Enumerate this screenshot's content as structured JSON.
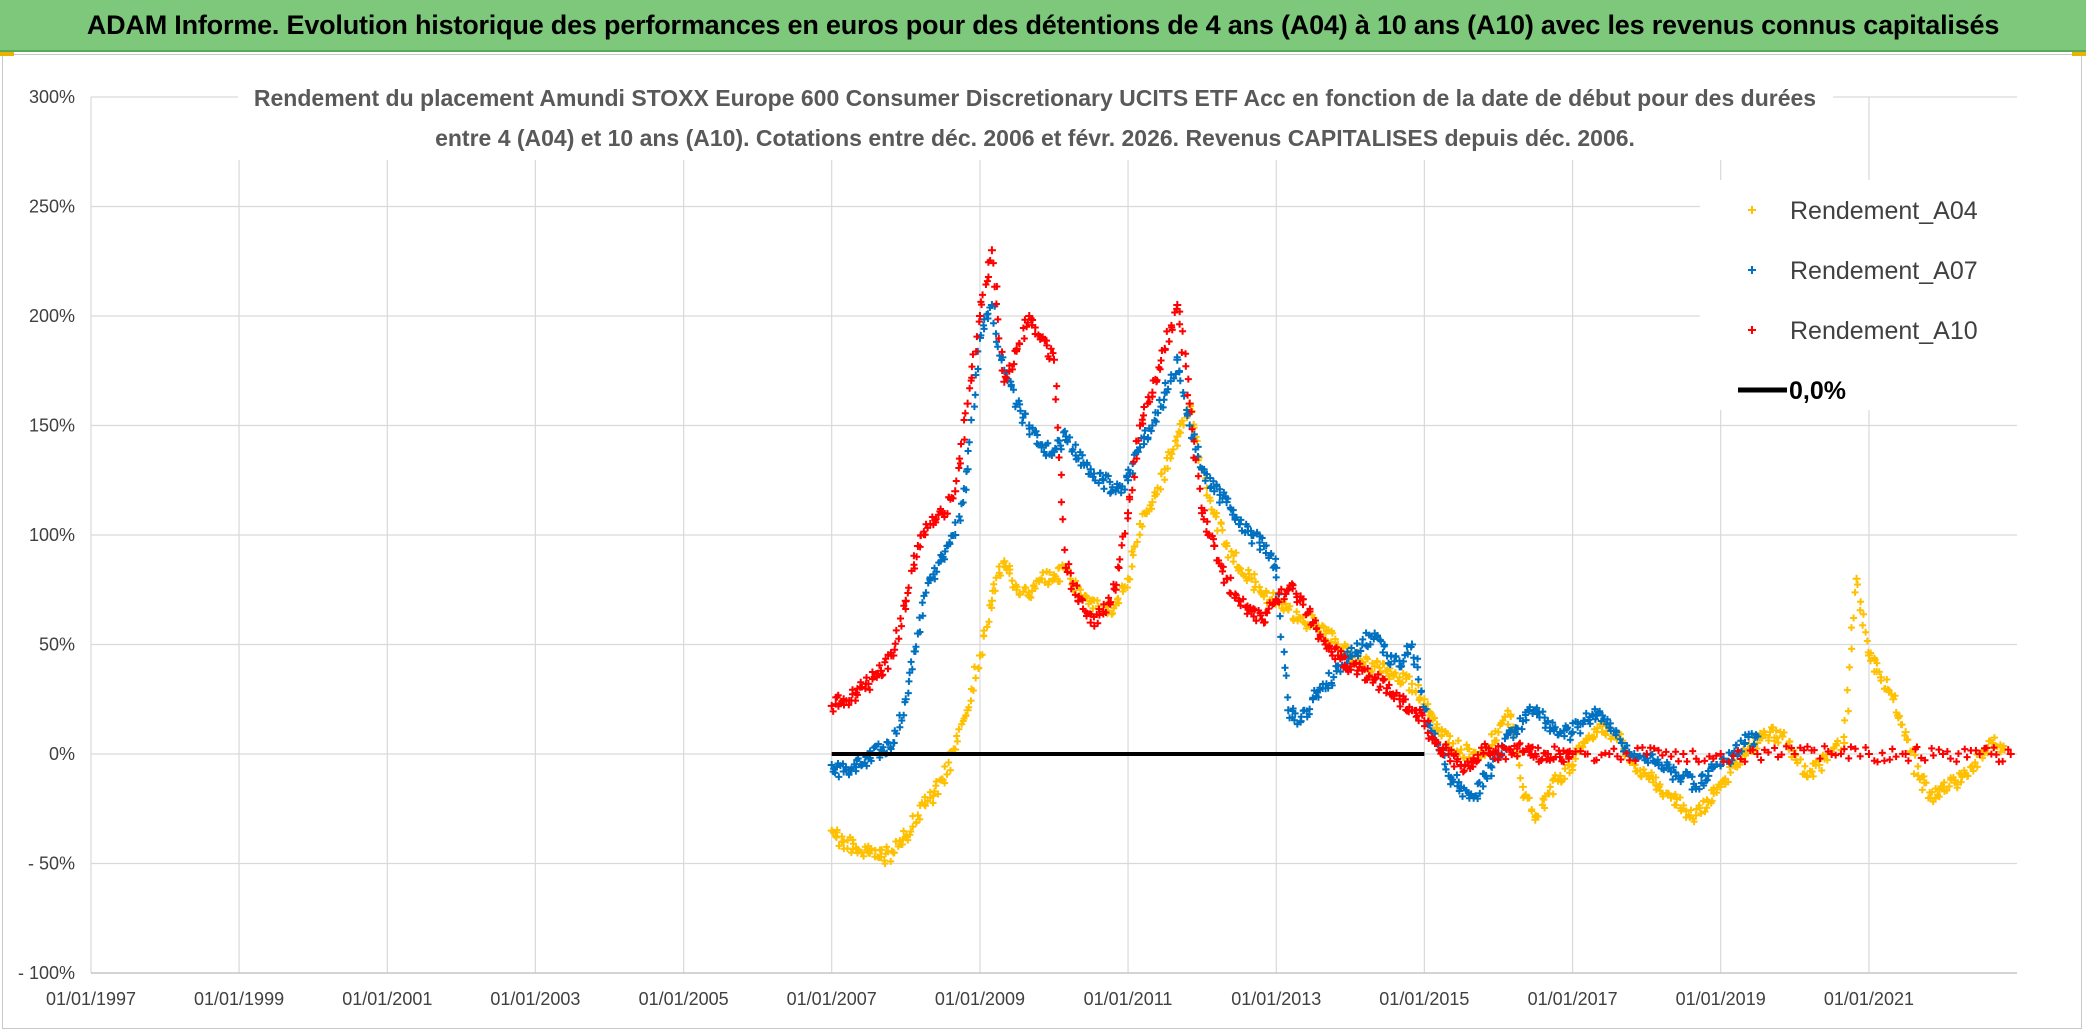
{
  "banner": {
    "text": "ADAM Informe. Evolution historique des performances en euros pour des détentions de 4 ans (A04) à 10 ans (A10) avec les revenus connus capitalisés",
    "background": "#7dc87a"
  },
  "chart_data": {
    "type": "scatter",
    "title_line1": "Rendement du placement Amundi STOXX Europe 600 Consumer Discretionary UCITS ETF Acc en fonction de la date de début pour des durées",
    "title_line2": "entre 4 (A04) et 10 ans (A10). Cotations entre déc. 2006 et févr. 2026. Revenus CAPITALISES depuis déc. 2006.",
    "xlabel": "",
    "ylabel": "",
    "xlim": [
      "1997-01-01",
      "2023-01-01"
    ],
    "ylim": [
      -100,
      300
    ],
    "grid": true,
    "legend_position": "top-right",
    "x_tick_labels": [
      "01/01/1997",
      "01/01/1999",
      "01/01/2001",
      "01/01/2003",
      "01/01/2005",
      "01/01/2007",
      "01/01/2009",
      "01/01/2011",
      "01/01/2013",
      "01/01/2015",
      "01/01/2017",
      "01/01/2019",
      "01/01/2021"
    ],
    "y_tick_labels": [
      "300%",
      "250%",
      "200%",
      "150%",
      "100%",
      "50%",
      "0%",
      "- 50%",
      "- 100%"
    ],
    "y_tick_values": [
      300,
      250,
      200,
      150,
      100,
      50,
      0,
      -50,
      -100
    ],
    "series": [
      {
        "name": "Rendement_A04",
        "color": "#ffc000",
        "marker": "+",
        "points": [
          [
            "2007-01-01",
            -35
          ],
          [
            "2007-03-01",
            -40
          ],
          [
            "2007-05-01",
            -43
          ],
          [
            "2007-07-01",
            -45
          ],
          [
            "2007-09-01",
            -47
          ],
          [
            "2007-11-01",
            -45
          ],
          [
            "2008-01-01",
            -38
          ],
          [
            "2008-03-01",
            -28
          ],
          [
            "2008-05-01",
            -20
          ],
          [
            "2008-07-01",
            -12
          ],
          [
            "2008-09-01",
            2
          ],
          [
            "2008-11-01",
            20
          ],
          [
            "2009-01-01",
            45
          ],
          [
            "2009-03-01",
            70
          ],
          [
            "2009-05-01",
            88
          ],
          [
            "2009-07-01",
            75
          ],
          [
            "2009-09-01",
            72
          ],
          [
            "2009-11-01",
            80
          ],
          [
            "2010-01-01",
            80
          ],
          [
            "2010-03-01",
            85
          ],
          [
            "2010-05-01",
            72
          ],
          [
            "2010-07-01",
            70
          ],
          [
            "2010-09-01",
            65
          ],
          [
            "2010-11-01",
            68
          ],
          [
            "2011-01-01",
            80
          ],
          [
            "2011-03-01",
            105
          ],
          [
            "2011-05-01",
            115
          ],
          [
            "2011-07-01",
            130
          ],
          [
            "2011-09-01",
            145
          ],
          [
            "2011-11-01",
            160
          ],
          [
            "2012-01-01",
            130
          ],
          [
            "2012-03-01",
            110
          ],
          [
            "2012-05-01",
            95
          ],
          [
            "2012-07-01",
            85
          ],
          [
            "2012-09-01",
            80
          ],
          [
            "2012-11-01",
            72
          ],
          [
            "2013-01-01",
            70
          ],
          [
            "2013-03-01",
            66
          ],
          [
            "2013-05-01",
            62
          ],
          [
            "2013-07-01",
            60
          ],
          [
            "2013-09-01",
            55
          ],
          [
            "2013-11-01",
            50
          ],
          [
            "2014-01-01",
            45
          ],
          [
            "2014-03-01",
            42
          ],
          [
            "2014-05-01",
            40
          ],
          [
            "2014-07-01",
            38
          ],
          [
            "2014-09-01",
            35
          ],
          [
            "2014-11-01",
            32
          ],
          [
            "2015-01-01",
            25
          ],
          [
            "2015-03-01",
            12
          ],
          [
            "2015-05-01",
            5
          ],
          [
            "2015-07-01",
            2
          ],
          [
            "2015-09-01",
            0
          ],
          [
            "2015-11-01",
            3
          ],
          [
            "2016-01-01",
            10
          ],
          [
            "2016-03-01",
            18
          ],
          [
            "2016-05-01",
            -15
          ],
          [
            "2016-07-01",
            -30
          ],
          [
            "2016-09-01",
            -18
          ],
          [
            "2016-11-01",
            -10
          ],
          [
            "2017-01-01",
            -5
          ],
          [
            "2017-03-01",
            5
          ],
          [
            "2017-05-01",
            10
          ],
          [
            "2017-07-01",
            12
          ],
          [
            "2017-09-01",
            5
          ],
          [
            "2017-11-01",
            -5
          ],
          [
            "2018-01-01",
            -10
          ],
          [
            "2018-03-01",
            -15
          ],
          [
            "2018-05-01",
            -20
          ],
          [
            "2018-07-01",
            -25
          ],
          [
            "2018-09-01",
            -28
          ],
          [
            "2018-11-01",
            -22
          ],
          [
            "2019-01-01",
            -15
          ],
          [
            "2019-03-01",
            -5
          ],
          [
            "2019-05-01",
            0
          ],
          [
            "2019-07-01",
            5
          ],
          [
            "2019-09-01",
            10
          ],
          [
            "2019-11-01",
            8
          ],
          [
            "2020-01-01",
            0
          ],
          [
            "2020-03-01",
            -10
          ],
          [
            "2020-05-01",
            -5
          ],
          [
            "2020-07-01",
            0
          ],
          [
            "2020-09-01",
            5
          ],
          [
            "2020-11-01",
            80
          ],
          [
            "2021-01-01",
            45
          ],
          [
            "2021-03-01",
            35
          ],
          [
            "2021-05-01",
            25
          ],
          [
            "2021-07-01",
            10
          ],
          [
            "2021-09-01",
            -10
          ],
          [
            "2021-11-01",
            -20
          ],
          [
            "2022-01-01",
            -15
          ],
          [
            "2022-03-01",
            -12
          ],
          [
            "2022-05-01",
            -10
          ],
          [
            "2022-07-01",
            0
          ],
          [
            "2022-09-01",
            5
          ],
          [
            "2022-11-01",
            2
          ]
        ]
      },
      {
        "name": "Rendement_A07",
        "color": "#0070c0",
        "marker": "+",
        "points": [
          [
            "2007-01-01",
            -5
          ],
          [
            "2007-03-01",
            -8
          ],
          [
            "2007-05-01",
            -6
          ],
          [
            "2007-07-01",
            -2
          ],
          [
            "2007-09-01",
            2
          ],
          [
            "2007-11-01",
            5
          ],
          [
            "2008-01-01",
            25
          ],
          [
            "2008-03-01",
            55
          ],
          [
            "2008-05-01",
            80
          ],
          [
            "2008-07-01",
            90
          ],
          [
            "2008-09-01",
            100
          ],
          [
            "2008-11-01",
            130
          ],
          [
            "2009-01-01",
            190
          ],
          [
            "2009-03-01",
            205
          ],
          [
            "2009-05-01",
            175
          ],
          [
            "2009-07-01",
            160
          ],
          [
            "2009-09-01",
            150
          ],
          [
            "2009-11-01",
            140
          ],
          [
            "2010-01-01",
            138
          ],
          [
            "2010-03-01",
            145
          ],
          [
            "2010-05-01",
            135
          ],
          [
            "2010-07-01",
            130
          ],
          [
            "2010-09-01",
            125
          ],
          [
            "2010-11-01",
            120
          ],
          [
            "2011-01-01",
            125
          ],
          [
            "2011-03-01",
            140
          ],
          [
            "2011-05-01",
            150
          ],
          [
            "2011-07-01",
            165
          ],
          [
            "2011-09-01",
            180
          ],
          [
            "2011-11-01",
            150
          ],
          [
            "2012-01-01",
            130
          ],
          [
            "2012-03-01",
            120
          ],
          [
            "2012-05-01",
            115
          ],
          [
            "2012-07-01",
            105
          ],
          [
            "2012-09-01",
            100
          ],
          [
            "2012-11-01",
            95
          ],
          [
            "2013-01-01",
            85
          ],
          [
            "2013-03-01",
            20
          ],
          [
            "2013-05-01",
            15
          ],
          [
            "2013-07-01",
            25
          ],
          [
            "2013-09-01",
            30
          ],
          [
            "2013-11-01",
            40
          ],
          [
            "2014-01-01",
            45
          ],
          [
            "2014-03-01",
            50
          ],
          [
            "2014-05-01",
            55
          ],
          [
            "2014-07-01",
            45
          ],
          [
            "2014-09-01",
            40
          ],
          [
            "2014-11-01",
            50
          ],
          [
            "2015-01-01",
            20
          ],
          [
            "2015-03-01",
            5
          ],
          [
            "2015-05-01",
            -10
          ],
          [
            "2015-07-01",
            -15
          ],
          [
            "2015-09-01",
            -20
          ],
          [
            "2015-11-01",
            -10
          ],
          [
            "2016-01-01",
            0
          ],
          [
            "2016-03-01",
            10
          ],
          [
            "2016-05-01",
            15
          ],
          [
            "2016-07-01",
            20
          ],
          [
            "2016-09-01",
            15
          ],
          [
            "2016-11-01",
            10
          ],
          [
            "2017-01-01",
            10
          ],
          [
            "2017-03-01",
            15
          ],
          [
            "2017-05-01",
            18
          ],
          [
            "2017-07-01",
            12
          ],
          [
            "2017-09-01",
            5
          ],
          [
            "2017-11-01",
            0
          ],
          [
            "2018-01-01",
            -2
          ],
          [
            "2018-03-01",
            -5
          ],
          [
            "2018-05-01",
            -8
          ],
          [
            "2018-07-01",
            -10
          ],
          [
            "2018-09-01",
            -15
          ],
          [
            "2018-11-01",
            -10
          ],
          [
            "2019-01-01",
            -5
          ],
          [
            "2019-03-01",
            0
          ],
          [
            "2019-05-01",
            5
          ],
          [
            "2019-07-01",
            8
          ]
        ]
      },
      {
        "name": "Rendement_A10",
        "color": "#ff0000",
        "marker": "+",
        "points": [
          [
            "2007-01-01",
            22
          ],
          [
            "2007-03-01",
            25
          ],
          [
            "2007-05-01",
            28
          ],
          [
            "2007-07-01",
            32
          ],
          [
            "2007-09-01",
            38
          ],
          [
            "2007-11-01",
            45
          ],
          [
            "2008-01-01",
            70
          ],
          [
            "2008-03-01",
            95
          ],
          [
            "2008-05-01",
            105
          ],
          [
            "2008-07-01",
            110
          ],
          [
            "2008-09-01",
            120
          ],
          [
            "2008-11-01",
            160
          ],
          [
            "2009-01-01",
            200
          ],
          [
            "2009-03-01",
            230
          ],
          [
            "2009-05-01",
            170
          ],
          [
            "2009-07-01",
            185
          ],
          [
            "2009-09-01",
            200
          ],
          [
            "2009-11-01",
            190
          ],
          [
            "2010-01-01",
            180
          ],
          [
            "2010-03-01",
            85
          ],
          [
            "2010-05-01",
            70
          ],
          [
            "2010-07-01",
            60
          ],
          [
            "2010-09-01",
            65
          ],
          [
            "2010-11-01",
            75
          ],
          [
            "2011-01-01",
            110
          ],
          [
            "2011-03-01",
            150
          ],
          [
            "2011-05-01",
            165
          ],
          [
            "2011-07-01",
            185
          ],
          [
            "2011-09-01",
            205
          ],
          [
            "2011-11-01",
            160
          ],
          [
            "2012-01-01",
            110
          ],
          [
            "2012-03-01",
            95
          ],
          [
            "2012-05-01",
            80
          ],
          [
            "2012-07-01",
            70
          ],
          [
            "2012-09-01",
            65
          ],
          [
            "2012-11-01",
            60
          ],
          [
            "2013-01-01",
            70
          ],
          [
            "2013-03-01",
            75
          ],
          [
            "2013-05-01",
            72
          ],
          [
            "2013-07-01",
            60
          ],
          [
            "2013-09-01",
            50
          ],
          [
            "2013-11-01",
            45
          ],
          [
            "2014-01-01",
            40
          ],
          [
            "2014-03-01",
            38
          ],
          [
            "2014-05-01",
            35
          ],
          [
            "2014-07-01",
            30
          ],
          [
            "2014-09-01",
            25
          ],
          [
            "2014-11-01",
            20
          ],
          [
            "2015-01-01",
            15
          ],
          [
            "2015-03-01",
            5
          ],
          [
            "2015-05-01",
            0
          ],
          [
            "2015-07-01",
            -5
          ],
          [
            "2015-09-01",
            -2
          ],
          [
            "2015-11-01",
            3
          ],
          [
            "2016-01-01",
            0
          ],
          [
            "2016-03-01",
            2
          ],
          [
            "2016-05-01",
            1
          ],
          [
            "2016-07-01",
            0
          ],
          [
            "2016-09-01",
            0
          ],
          [
            "2016-11-01",
            0
          ],
          [
            "2017-01-01",
            0
          ],
          [
            "2017-07-01",
            0
          ],
          [
            "2018-01-01",
            0
          ],
          [
            "2018-07-01",
            0
          ],
          [
            "2019-01-01",
            0
          ],
          [
            "2019-07-01",
            0
          ],
          [
            "2020-01-01",
            0
          ],
          [
            "2020-07-01",
            0
          ],
          [
            "2021-01-01",
            0
          ],
          [
            "2021-07-01",
            0
          ],
          [
            "2022-01-01",
            0
          ],
          [
            "2022-07-01",
            0
          ],
          [
            "2022-12-01",
            0
          ]
        ]
      },
      {
        "name": "0,0%",
        "color": "#000000",
        "marker": "line",
        "points": [
          [
            "2007-01-01",
            0
          ],
          [
            "2015-01-01",
            0
          ]
        ]
      }
    ]
  }
}
